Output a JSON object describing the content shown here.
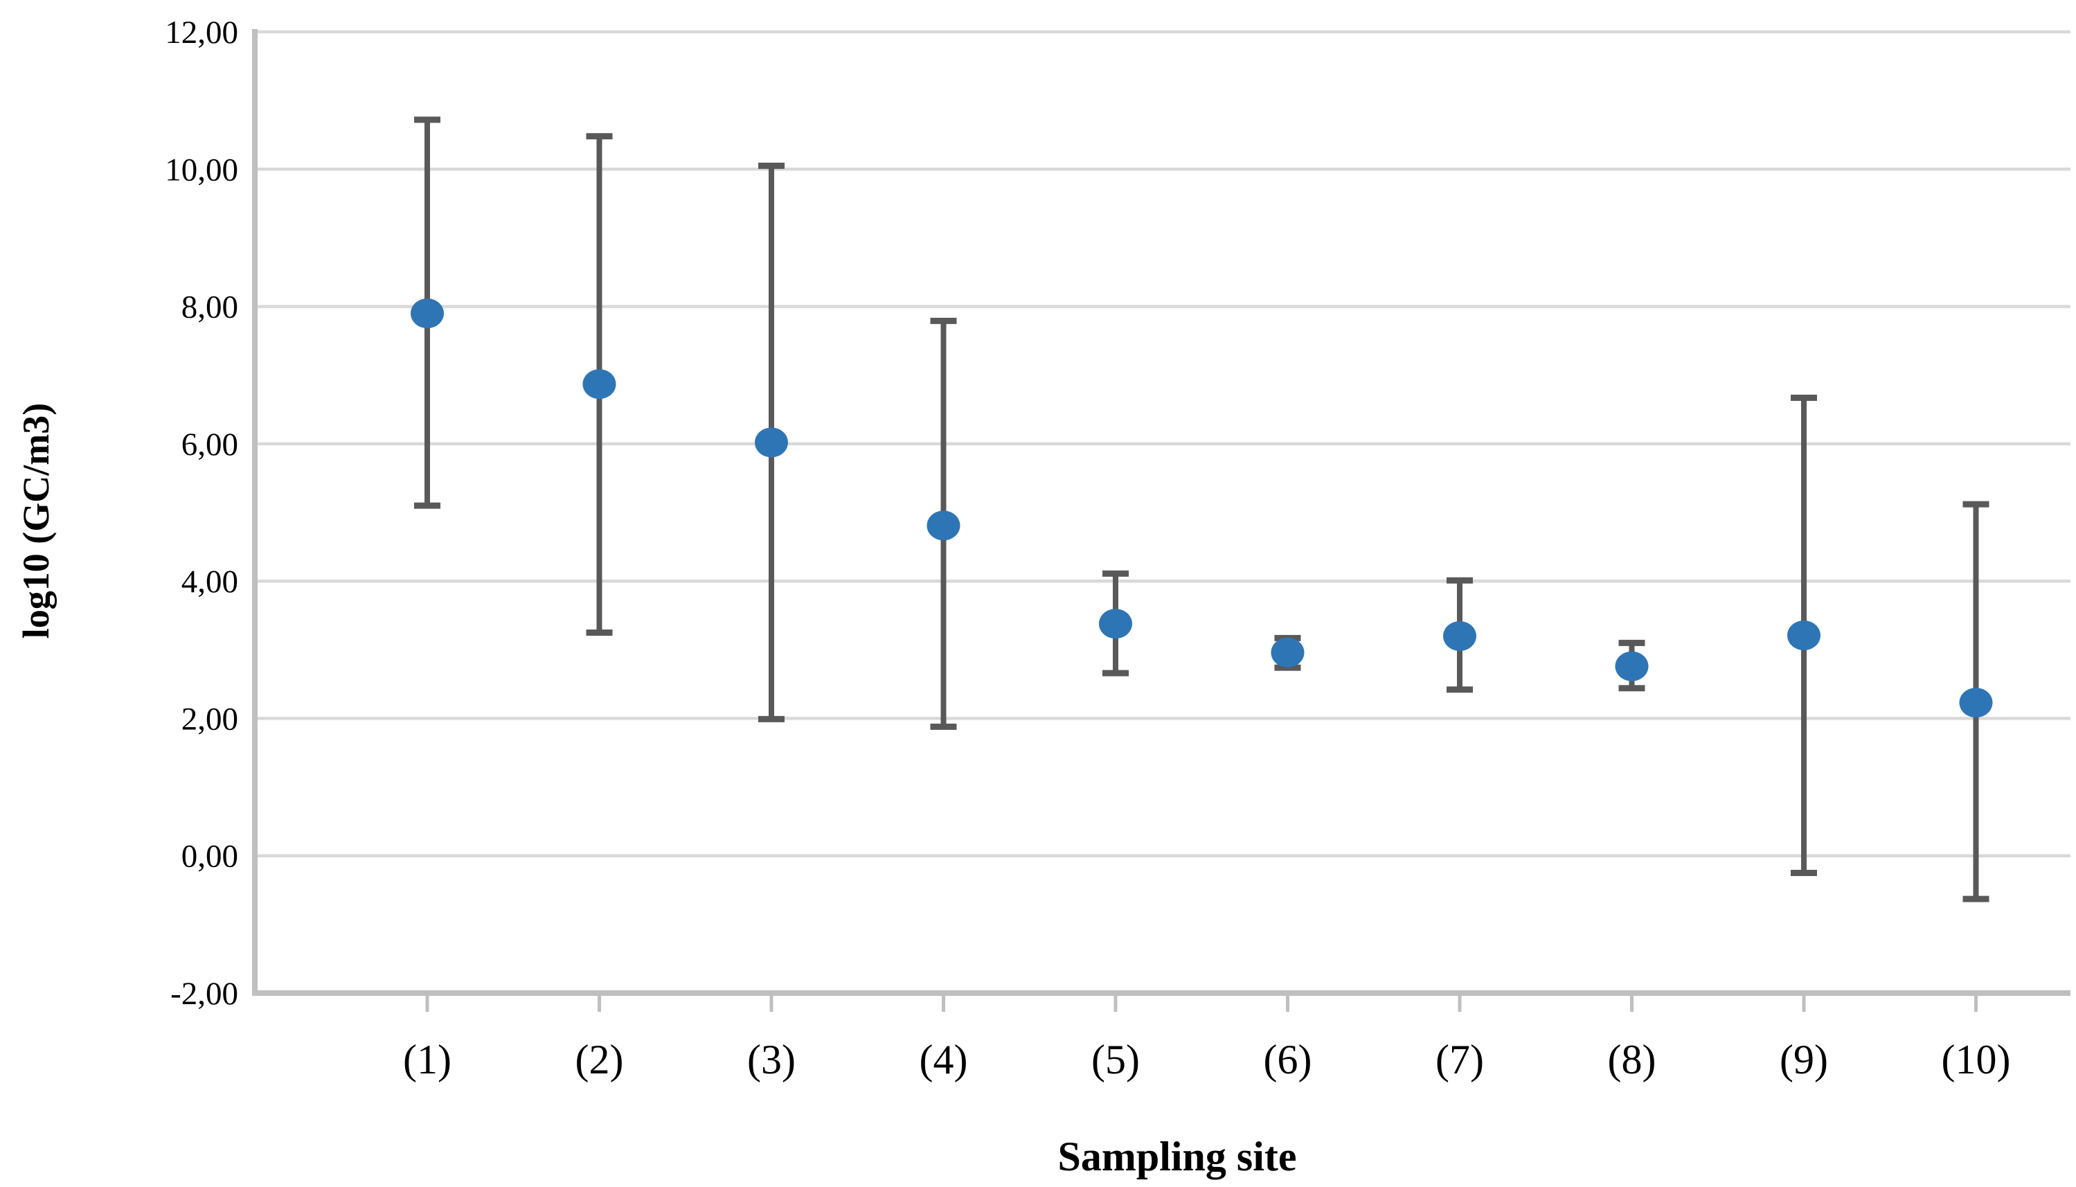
{
  "figure": {
    "background": "#ffffff"
  },
  "chart_data": {
    "type": "scatter",
    "title": "",
    "xlabel": "Sampling site",
    "ylabel": "log10 (GC/m3)",
    "categories": [
      "(1)",
      "(2)",
      "(3)",
      "(4)",
      "(5)",
      "(6)",
      "(7)",
      "(8)",
      "(9)",
      "(10)"
    ],
    "series": [
      {
        "name": "log10 (GC/m3)",
        "values": [
          7.9,
          6.87,
          6.02,
          4.81,
          3.38,
          2.96,
          3.2,
          2.76,
          3.21,
          2.23
        ],
        "error_high": [
          10.72,
          10.48,
          10.05,
          7.79,
          4.11,
          3.17,
          4.01,
          3.1,
          6.67,
          5.12
        ],
        "error_low": [
          5.1,
          3.25,
          1.99,
          1.88,
          2.66,
          2.74,
          2.42,
          2.44,
          -0.25,
          -0.63
        ]
      }
    ],
    "ylim": [
      -2,
      12
    ],
    "ytick_values": [
      12,
      10,
      8,
      6,
      4,
      2,
      0,
      -2
    ],
    "ytick_labels": [
      "12,00",
      "10,00",
      "8,00",
      "6,00",
      "4,00",
      "2,00",
      "0,00",
      "-2,00"
    ],
    "grid": true,
    "legend": false,
    "decimal_separator": ",",
    "colors": {
      "marker": "#2E75B6",
      "error_bar": "#595959",
      "gridline": "#D9D9D9",
      "axis_line": "#BFBFBF",
      "text": "#000000"
    }
  }
}
